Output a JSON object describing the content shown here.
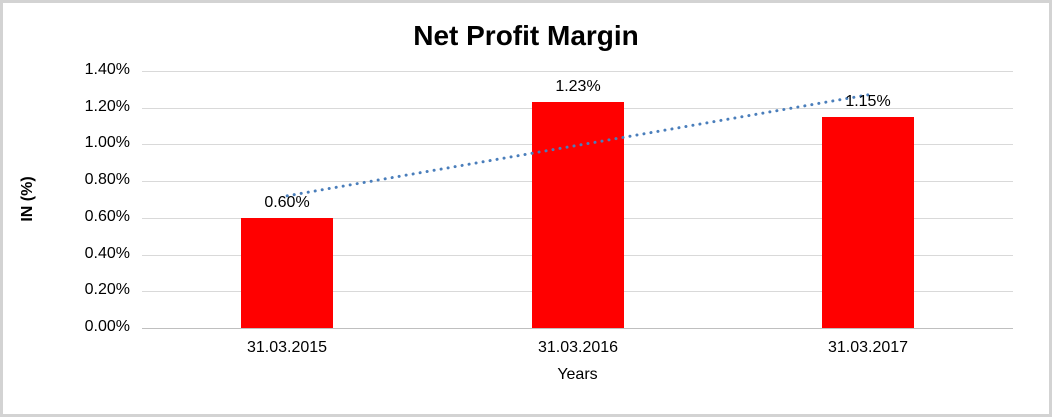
{
  "chart_data": {
    "type": "bar",
    "title": "Net Profit Margin",
    "xlabel": "Years",
    "ylabel": "IN (%)",
    "categories": [
      "31.03.2015",
      "31.03.2016",
      "31.03.2017"
    ],
    "values": [
      0.6,
      1.23,
      1.15
    ],
    "data_labels": [
      "0.60%",
      "1.23%",
      "1.15%"
    ],
    "ylim": [
      0,
      1.4
    ],
    "ytick_step": 0.2,
    "ytick_labels": [
      "0.00%",
      "0.20%",
      "0.40%",
      "0.60%",
      "0.80%",
      "1.00%",
      "1.20%",
      "1.40%"
    ],
    "grid": true,
    "legend_position": "none",
    "bar_color": "#ff0000",
    "gridline_color": "#d9d9d9",
    "axis_line_color": "#bfbfbf",
    "text_color": "#000000",
    "border_color": "#d3d3d3",
    "trendline": {
      "type": "linear",
      "style": "dotted",
      "color": "#4a7ebb",
      "start_value": 0.72,
      "end_value": 1.27
    }
  }
}
